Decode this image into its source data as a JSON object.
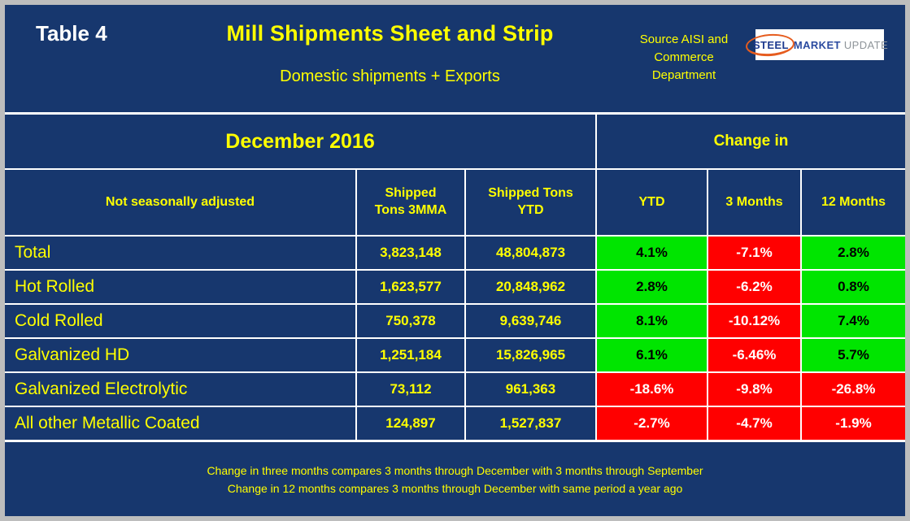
{
  "colors": {
    "navy": "#17376e",
    "yellow": "#ffff00",
    "green": "#00e500",
    "red": "#ff0000",
    "frame": "#bdbdbd",
    "white": "#ffffff"
  },
  "header": {
    "table_label": "Table 4",
    "title": "Mill Shipments Sheet and Strip",
    "subtitle": "Domestic shipments + Exports",
    "source": "Source AISI and Commerce Department",
    "logo": {
      "word1": "STEEL",
      "word2": "MARKET",
      "word3": "UPDATE"
    }
  },
  "table": {
    "period": "December 2016",
    "change_in": "Change in",
    "col_headers": {
      "label": "Not seasonally adjusted",
      "tons_3mma": "Shipped Tons 3MMA",
      "tons_ytd": "Shipped Tons YTD",
      "ytd": "YTD",
      "three_months": "3 Months",
      "twelve_months": "12 Months"
    },
    "rows": [
      {
        "label": "Total",
        "tons_3mma": "3,823,148",
        "tons_ytd": "48,804,873",
        "ytd": "4.1%",
        "three_months": "-7.1%",
        "twelve_months": "2.8%"
      },
      {
        "label": "Hot Rolled",
        "tons_3mma": "1,623,577",
        "tons_ytd": "20,848,962",
        "ytd": "2.8%",
        "three_months": "-6.2%",
        "twelve_months": "0.8%"
      },
      {
        "label": "Cold Rolled",
        "tons_3mma": "750,378",
        "tons_ytd": "9,639,746",
        "ytd": "8.1%",
        "three_months": "-10.12%",
        "twelve_months": "7.4%"
      },
      {
        "label": "Galvanized HD",
        "tons_3mma": "1,251,184",
        "tons_ytd": "15,826,965",
        "ytd": "6.1%",
        "three_months": "-6.46%",
        "twelve_months": "5.7%"
      },
      {
        "label": "Galvanized Electrolytic",
        "tons_3mma": "73,112",
        "tons_ytd": "961,363",
        "ytd": "-18.6%",
        "three_months": "-9.8%",
        "twelve_months": "-26.8%"
      },
      {
        "label": "All other Metallic Coated",
        "tons_3mma": "124,897",
        "tons_ytd": "1,527,837",
        "ytd": "-2.7%",
        "three_months": "-4.7%",
        "twelve_months": "-1.9%"
      }
    ]
  },
  "footnotes": [
    "Change in three months compares 3 months through December with 3 months through September",
    "Change in 12 months compares 3 months through December with same period a year ago"
  ],
  "chart_data": {
    "type": "table",
    "title": "Mill Shipments Sheet and Strip",
    "subtitle": "Domestic shipments + Exports, December 2016, not seasonally adjusted",
    "source": "Source AISI and Commerce Department",
    "columns": [
      "Not seasonally adjusted",
      "Shipped Tons 3MMA",
      "Shipped Tons YTD",
      "YTD change",
      "3 Months change",
      "12 Months change"
    ],
    "rows": [
      [
        "Total",
        3823148,
        48804873,
        "4.1%",
        "-7.1%",
        "2.8%"
      ],
      [
        "Hot Rolled",
        1623577,
        20848962,
        "2.8%",
        "-6.2%",
        "0.8%"
      ],
      [
        "Cold Rolled",
        750378,
        9639746,
        "8.1%",
        "-10.12%",
        "7.4%"
      ],
      [
        "Galvanized HD",
        1251184,
        15826965,
        "6.1%",
        "-6.46%",
        "5.7%"
      ],
      [
        "Galvanized Electrolytic",
        73112,
        961363,
        "-18.6%",
        "-9.8%",
        "-26.8%"
      ],
      [
        "All other Metallic Coated",
        124897,
        1527837,
        "-2.7%",
        "-4.7%",
        "-1.9%"
      ]
    ],
    "color_coding": "positive change = green cell with black text, negative change = red cell with white text"
  }
}
